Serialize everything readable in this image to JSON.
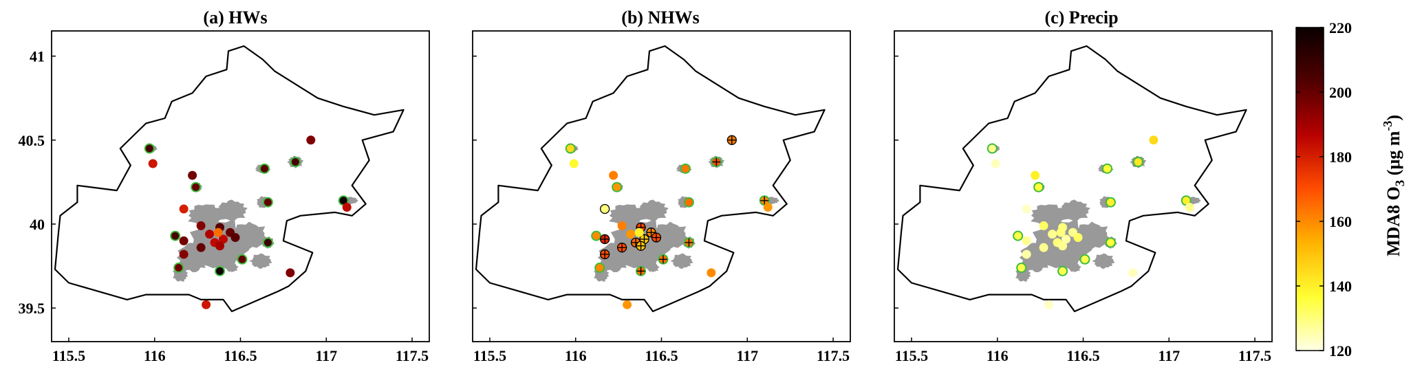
{
  "chart_data": {
    "type": "scatter",
    "map_outline": [
      [
        115.44,
        39.95
      ],
      [
        115.45,
        40.05
      ],
      [
        115.55,
        40.13
      ],
      [
        115.55,
        40.23
      ],
      [
        115.78,
        40.2
      ],
      [
        115.86,
        40.35
      ],
      [
        115.8,
        40.45
      ],
      [
        115.95,
        40.6
      ],
      [
        116.06,
        40.63
      ],
      [
        116.1,
        40.73
      ],
      [
        116.22,
        40.78
      ],
      [
        116.3,
        40.88
      ],
      [
        116.42,
        40.92
      ],
      [
        116.43,
        41.03
      ],
      [
        116.52,
        41.06
      ],
      [
        116.63,
        40.98
      ],
      [
        116.7,
        40.91
      ],
      [
        116.95,
        40.75
      ],
      [
        117.1,
        40.7
      ],
      [
        117.28,
        40.65
      ],
      [
        117.45,
        40.68
      ],
      [
        117.39,
        40.55
      ],
      [
        117.21,
        40.5
      ],
      [
        117.25,
        40.38
      ],
      [
        117.15,
        40.23
      ],
      [
        117.23,
        40.12
      ],
      [
        117.15,
        40.05
      ],
      [
        117.05,
        40.07
      ],
      [
        116.85,
        40.05
      ],
      [
        116.77,
        40.02
      ],
      [
        116.75,
        39.9
      ],
      [
        116.92,
        39.83
      ],
      [
        116.88,
        39.72
      ],
      [
        116.78,
        39.63
      ],
      [
        116.72,
        39.6
      ],
      [
        116.45,
        39.48
      ],
      [
        116.4,
        39.55
      ],
      [
        116.27,
        39.55
      ],
      [
        116.2,
        39.58
      ],
      [
        116.1,
        39.58
      ],
      [
        115.95,
        39.58
      ],
      [
        115.84,
        39.55
      ],
      [
        115.67,
        39.6
      ],
      [
        115.5,
        39.65
      ],
      [
        115.42,
        39.73
      ],
      [
        115.44,
        39.95
      ]
    ],
    "colorbar": {
      "label": "MDA8 O",
      "label_sub": "3",
      "unit_open": " (μg m",
      "unit_sup": "-3",
      "unit_close": ")",
      "range": [
        120,
        220
      ],
      "ticks": [
        "120",
        "140",
        "160",
        "180",
        "200",
        "220"
      ],
      "colors": [
        "#ffffe6",
        "#ffff33",
        "#ffb300",
        "#ff4d00",
        "#b80000",
        "#500000",
        "#0a0000"
      ]
    },
    "xlim": [
      115.4,
      117.6
    ],
    "ylim": [
      39.3,
      41.15
    ],
    "x_ticks": [
      "115.5",
      "116",
      "116.5",
      "117",
      "117.5"
    ],
    "y_ticks": [
      "39.5",
      "40",
      "40.5",
      "41"
    ],
    "panels": [
      {
        "title": "(a) HWs",
        "points": [
          {
            "x": 115.97,
            "y": 40.45,
            "v": 205,
            "ring": true
          },
          {
            "x": 115.99,
            "y": 40.36,
            "v": 182
          },
          {
            "x": 116.22,
            "y": 40.29,
            "v": 198
          },
          {
            "x": 116.24,
            "y": 40.22,
            "v": 200,
            "ring": true
          },
          {
            "x": 116.64,
            "y": 40.33,
            "v": 202,
            "ring": true
          },
          {
            "x": 116.82,
            "y": 40.37,
            "v": 205,
            "ring": true
          },
          {
            "x": 116.91,
            "y": 40.5,
            "v": 196
          },
          {
            "x": 116.66,
            "y": 40.13,
            "v": 200,
            "ring": true
          },
          {
            "x": 116.17,
            "y": 40.09,
            "v": 180
          },
          {
            "x": 117.1,
            "y": 40.14,
            "v": 218,
            "ring": true
          },
          {
            "x": 117.12,
            "y": 40.1,
            "v": 185
          },
          {
            "x": 116.12,
            "y": 39.93,
            "v": 205,
            "ring": true
          },
          {
            "x": 116.17,
            "y": 39.9,
            "v": 198
          },
          {
            "x": 116.17,
            "y": 39.82,
            "v": 195
          },
          {
            "x": 116.14,
            "y": 39.74,
            "v": 198,
            "ring": true
          },
          {
            "x": 116.27,
            "y": 39.99,
            "v": 195
          },
          {
            "x": 116.32,
            "y": 39.94,
            "v": 188
          },
          {
            "x": 116.38,
            "y": 39.98,
            "v": 202
          },
          {
            "x": 116.44,
            "y": 39.95,
            "v": 200
          },
          {
            "x": 116.27,
            "y": 39.86,
            "v": 200
          },
          {
            "x": 116.35,
            "y": 39.89,
            "v": 185
          },
          {
            "x": 116.4,
            "y": 39.91,
            "v": 185
          },
          {
            "x": 116.38,
            "y": 39.87,
            "v": 190
          },
          {
            "x": 116.47,
            "y": 39.92,
            "v": 202
          },
          {
            "x": 116.37,
            "y": 39.95,
            "v": 165
          },
          {
            "x": 116.38,
            "y": 39.72,
            "v": 218,
            "ring": true
          },
          {
            "x": 116.51,
            "y": 39.79,
            "v": 200,
            "ring": true
          },
          {
            "x": 116.66,
            "y": 39.89,
            "v": 208,
            "ring": true
          },
          {
            "x": 116.79,
            "y": 39.71,
            "v": 196
          },
          {
            "x": 116.3,
            "y": 39.52,
            "v": 182
          }
        ]
      },
      {
        "title": "(b) NHWs",
        "points": [
          {
            "x": 115.97,
            "y": 40.45,
            "v": 145,
            "ring": true
          },
          {
            "x": 115.99,
            "y": 40.36,
            "v": 138
          },
          {
            "x": 116.22,
            "y": 40.29,
            "v": 162
          },
          {
            "x": 116.24,
            "y": 40.22,
            "v": 158,
            "ring": true
          },
          {
            "x": 116.64,
            "y": 40.33,
            "v": 163,
            "ring": true
          },
          {
            "x": 116.82,
            "y": 40.37,
            "v": 170,
            "ring": true,
            "cross": true
          },
          {
            "x": 116.91,
            "y": 40.5,
            "v": 162,
            "cross": true
          },
          {
            "x": 116.66,
            "y": 40.13,
            "v": 165,
            "ring": true
          },
          {
            "x": 116.17,
            "y": 40.09,
            "v": 130
          },
          {
            "x": 117.1,
            "y": 40.14,
            "v": 160,
            "ring": true,
            "cross": true
          },
          {
            "x": 117.12,
            "y": 40.1,
            "v": 158
          },
          {
            "x": 116.12,
            "y": 39.93,
            "v": 160,
            "ring": true
          },
          {
            "x": 116.17,
            "y": 39.91,
            "v": 178,
            "cross": true
          },
          {
            "x": 116.17,
            "y": 39.82,
            "v": 170,
            "cross": true
          },
          {
            "x": 116.14,
            "y": 39.74,
            "v": 160,
            "ring": true
          },
          {
            "x": 116.27,
            "y": 39.99,
            "v": 162
          },
          {
            "x": 116.32,
            "y": 39.94,
            "v": 158
          },
          {
            "x": 116.38,
            "y": 39.98,
            "v": 172,
            "cross": true
          },
          {
            "x": 116.44,
            "y": 39.95,
            "v": 160,
            "cross": true
          },
          {
            "x": 116.27,
            "y": 39.86,
            "v": 170,
            "cross": true
          },
          {
            "x": 116.35,
            "y": 39.89,
            "v": 165,
            "cross": true
          },
          {
            "x": 116.4,
            "y": 39.91,
            "v": 148,
            "cross": true
          },
          {
            "x": 116.38,
            "y": 39.87,
            "v": 150,
            "cross": true
          },
          {
            "x": 116.47,
            "y": 39.92,
            "v": 170,
            "cross": true
          },
          {
            "x": 116.37,
            "y": 39.95,
            "v": 140
          },
          {
            "x": 116.38,
            "y": 39.72,
            "v": 165,
            "ring": true,
            "cross": true
          },
          {
            "x": 116.51,
            "y": 39.79,
            "v": 165,
            "ring": true,
            "cross": true
          },
          {
            "x": 116.66,
            "y": 39.89,
            "v": 163,
            "ring": true,
            "cross": true
          },
          {
            "x": 116.79,
            "y": 39.71,
            "v": 160
          },
          {
            "x": 116.3,
            "y": 39.52,
            "v": 158
          }
        ]
      },
      {
        "title": "(c) Precip",
        "points": [
          {
            "x": 115.97,
            "y": 40.45,
            "v": 128,
            "ring": true
          },
          {
            "x": 115.99,
            "y": 40.36,
            "v": 124
          },
          {
            "x": 116.22,
            "y": 40.29,
            "v": 140
          },
          {
            "x": 116.24,
            "y": 40.22,
            "v": 136,
            "ring": true
          },
          {
            "x": 116.64,
            "y": 40.33,
            "v": 136,
            "ring": true
          },
          {
            "x": 116.82,
            "y": 40.37,
            "v": 142,
            "ring": true
          },
          {
            "x": 116.91,
            "y": 40.5,
            "v": 145
          },
          {
            "x": 116.66,
            "y": 40.13,
            "v": 140,
            "ring": true
          },
          {
            "x": 116.17,
            "y": 40.09,
            "v": 123
          },
          {
            "x": 117.1,
            "y": 40.14,
            "v": 140,
            "ring": true
          },
          {
            "x": 117.12,
            "y": 40.1,
            "v": 128
          },
          {
            "x": 116.12,
            "y": 39.93,
            "v": 135,
            "ring": true
          },
          {
            "x": 116.17,
            "y": 39.9,
            "v": 128
          },
          {
            "x": 116.17,
            "y": 39.82,
            "v": 126
          },
          {
            "x": 116.14,
            "y": 39.74,
            "v": 134,
            "ring": true
          },
          {
            "x": 116.27,
            "y": 39.99,
            "v": 132
          },
          {
            "x": 116.32,
            "y": 39.94,
            "v": 128
          },
          {
            "x": 116.38,
            "y": 39.98,
            "v": 130
          },
          {
            "x": 116.44,
            "y": 39.95,
            "v": 128
          },
          {
            "x": 116.27,
            "y": 39.86,
            "v": 128
          },
          {
            "x": 116.35,
            "y": 39.89,
            "v": 130
          },
          {
            "x": 116.4,
            "y": 39.91,
            "v": 126
          },
          {
            "x": 116.38,
            "y": 39.87,
            "v": 128
          },
          {
            "x": 116.47,
            "y": 39.92,
            "v": 132
          },
          {
            "x": 116.37,
            "y": 39.95,
            "v": 130
          },
          {
            "x": 116.38,
            "y": 39.72,
            "v": 134,
            "ring": true
          },
          {
            "x": 116.51,
            "y": 39.79,
            "v": 134,
            "ring": true
          },
          {
            "x": 116.66,
            "y": 39.89,
            "v": 136,
            "ring": true
          },
          {
            "x": 116.79,
            "y": 39.71,
            "v": 124
          },
          {
            "x": 116.3,
            "y": 39.52,
            "v": 123
          }
        ]
      }
    ]
  }
}
